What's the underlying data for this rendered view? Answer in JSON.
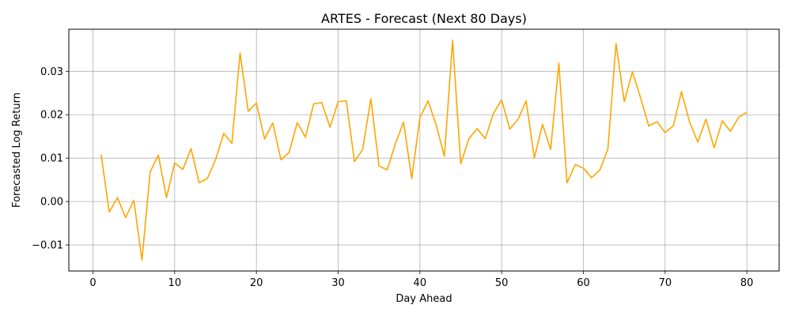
{
  "chart_data": {
    "type": "line",
    "title": "ARTES - Forecast (Next 80 Days)",
    "xlabel": "Day Ahead",
    "ylabel": "Forecasted Log Return",
    "xlim": [
      -2.95,
      83.95
    ],
    "ylim": [
      -0.016,
      0.0397
    ],
    "xticks": [
      0,
      10,
      20,
      30,
      40,
      50,
      60,
      70,
      80
    ],
    "xtick_labels": [
      "0",
      "10",
      "20",
      "30",
      "40",
      "50",
      "60",
      "70",
      "80"
    ],
    "yticks": [
      -0.01,
      0.0,
      0.01,
      0.02,
      0.03
    ],
    "ytick_labels": [
      "−0.01",
      "0.00",
      "0.01",
      "0.02",
      "0.03"
    ],
    "grid": true,
    "line_color": "#FFA500",
    "x": [
      1,
      2,
      3,
      4,
      5,
      6,
      7,
      8,
      9,
      10,
      11,
      12,
      13,
      14,
      15,
      16,
      17,
      18,
      19,
      20,
      21,
      22,
      23,
      24,
      25,
      26,
      27,
      28,
      29,
      30,
      31,
      32,
      33,
      34,
      35,
      36,
      37,
      38,
      39,
      40,
      41,
      42,
      43,
      44,
      45,
      46,
      47,
      48,
      49,
      50,
      51,
      52,
      53,
      54,
      55,
      56,
      57,
      58,
      59,
      60,
      61,
      62,
      63,
      64,
      65,
      66,
      67,
      68,
      69,
      70,
      71,
      72,
      73,
      74,
      75,
      76,
      77,
      78,
      79,
      80
    ],
    "values": [
      0.0108,
      -0.0024,
      0.0009,
      -0.0037,
      0.0003,
      -0.0135,
      0.0068,
      0.0107,
      0.0009,
      0.0089,
      0.0074,
      0.0122,
      0.0043,
      0.0053,
      0.0096,
      0.0157,
      0.0134,
      0.0342,
      0.0208,
      0.0227,
      0.0144,
      0.0181,
      0.0096,
      0.0113,
      0.0182,
      0.0148,
      0.0225,
      0.0228,
      0.0171,
      0.023,
      0.0232,
      0.0092,
      0.012,
      0.0237,
      0.0082,
      0.0073,
      0.0133,
      0.0183,
      0.0053,
      0.0193,
      0.0232,
      0.0176,
      0.0104,
      0.0371,
      0.0087,
      0.0145,
      0.0168,
      0.0145,
      0.0203,
      0.0234,
      0.0167,
      0.0189,
      0.0232,
      0.01,
      0.0178,
      0.012,
      0.0319,
      0.0043,
      0.0085,
      0.0077,
      0.0055,
      0.0072,
      0.0121,
      0.0364,
      0.023,
      0.0299,
      0.0239,
      0.0174,
      0.0184,
      0.0159,
      0.0174,
      0.0253,
      0.0183,
      0.0137,
      0.019,
      0.0124,
      0.0186,
      0.0162,
      0.0194,
      0.0206
    ]
  }
}
